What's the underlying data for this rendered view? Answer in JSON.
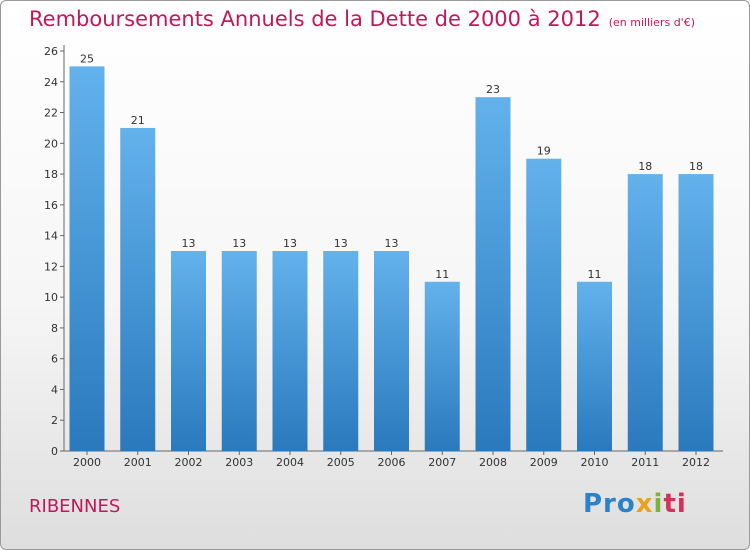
{
  "header": {
    "title": "Remboursements Annuels de la Dette de 2000 à 2012",
    "unit": "(en milliers d'€)"
  },
  "footer": {
    "commune": "RIBENNES",
    "brand": [
      "Pro",
      "x",
      "i",
      "ti"
    ]
  },
  "colors": {
    "title": "#c2185b",
    "bar_top": "#63b2ec",
    "bar_bottom": "#2a79bd"
  },
  "chart_data": {
    "type": "bar",
    "title": "Remboursements Annuels de la Dette de 2000 à 2012",
    "subtitle": "(en milliers d'€)",
    "xlabel": "",
    "ylabel": "",
    "categories": [
      "2000",
      "2001",
      "2002",
      "2003",
      "2004",
      "2005",
      "2006",
      "2007",
      "2008",
      "2009",
      "2010",
      "2011",
      "2012"
    ],
    "values": [
      25,
      21,
      13,
      13,
      13,
      13,
      13,
      11,
      23,
      19,
      11,
      18,
      18
    ],
    "yticks": [
      0,
      2,
      4,
      6,
      8,
      10,
      12,
      14,
      16,
      18,
      20,
      22,
      24,
      26
    ],
    "ylim": [
      0,
      26
    ],
    "grid": false,
    "data_labels": true
  }
}
